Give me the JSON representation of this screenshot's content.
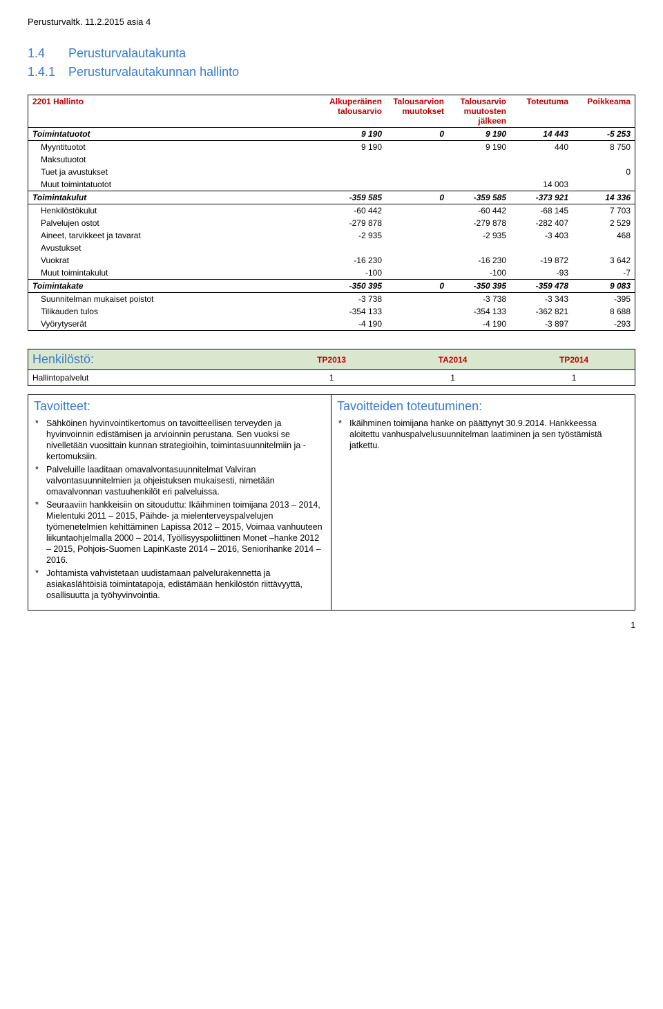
{
  "header": "Perusturvaltk. 11.2.2015 asia 4",
  "section": {
    "num": "1.4",
    "title": "Perusturvalautakunta"
  },
  "subsection": {
    "num": "1.4.1",
    "title": "Perusturvalautakunnan hallinto"
  },
  "financial_table": {
    "title_cell": "2201 Hallinto",
    "columns": [
      "Alkuperäinen talousarvio",
      "Talousarvion muutokset",
      "Talousarvio muutosten jälkeen",
      "Toteutuma",
      "Poikkeama"
    ],
    "title_color": "#c00000",
    "groups": [
      {
        "label": "Toimintatuotot",
        "values": [
          "9 190",
          "0",
          "9 190",
          "14 443",
          "-5 253"
        ],
        "rows": [
          {
            "label": "Myyntituotot",
            "values": [
              "9 190",
              "",
              "9 190",
              "440",
              "8 750"
            ]
          },
          {
            "label": "Maksutuotot",
            "values": [
              "",
              "",
              "",
              "",
              ""
            ]
          },
          {
            "label": "Tuet ja avustukset",
            "values": [
              "",
              "",
              "",
              "",
              "0"
            ]
          },
          {
            "label": "Muut toimintatuotot",
            "values": [
              "",
              "",
              "",
              "14 003",
              ""
            ]
          }
        ]
      },
      {
        "label": "Toimintakulut",
        "values": [
          "-359 585",
          "0",
          "-359 585",
          "-373 921",
          "14 336"
        ],
        "rows": [
          {
            "label": "Henkilöstökulut",
            "values": [
              "-60 442",
              "",
              "-60 442",
              "-68 145",
              "7 703"
            ]
          },
          {
            "label": "Palvelujen ostot",
            "values": [
              "-279 878",
              "",
              "-279 878",
              "-282 407",
              "2 529"
            ]
          },
          {
            "label": "Aineet, tarvikkeet ja tavarat",
            "values": [
              "-2 935",
              "",
              "-2 935",
              "-3 403",
              "468"
            ]
          },
          {
            "label": "Avustukset",
            "values": [
              "",
              "",
              "",
              "",
              ""
            ]
          },
          {
            "label": "Vuokrat",
            "values": [
              "-16 230",
              "",
              "-16 230",
              "-19 872",
              "3 642"
            ]
          },
          {
            "label": "Muut toimintakulut",
            "values": [
              "-100",
              "",
              "-100",
              "-93",
              "-7"
            ]
          }
        ]
      },
      {
        "label": "Toimintakate",
        "values": [
          "-350 395",
          "0",
          "-350 395",
          "-359 478",
          "9 083"
        ],
        "rows": [
          {
            "label": "Suunnitelman mukaiset poistot",
            "values": [
              "-3 738",
              "",
              "-3 738",
              "-3 343",
              "-395"
            ]
          },
          {
            "label": "Tilikauden tulos",
            "values": [
              "-354 133",
              "",
              "-354 133",
              "-362 821",
              "8 688"
            ]
          },
          {
            "label": "Vyörytyserät",
            "values": [
              "-4 190",
              "",
              "-4 190",
              "-3 897",
              "-293"
            ]
          }
        ]
      }
    ]
  },
  "staff_table": {
    "title": "Henkilöstö:",
    "columns": [
      "TP2013",
      "TA2014",
      "TP2014"
    ],
    "header_bg": "#d9e7cf",
    "col_color": "#c00000",
    "rows": [
      {
        "label": "Hallintopalvelut",
        "values": [
          "1",
          "1",
          "1"
        ]
      }
    ]
  },
  "goals": {
    "left_title": "Tavoitteet:",
    "right_title": "Tavoitteiden toteutuminen:",
    "left_items": [
      "Sähköinen hyvinvointikertomus on tavoitteellisen terveyden ja hyvinvoinnin edistämisen ja arvioinnin perustana. Sen vuoksi se nivelletään vuosittain kunnan strategioihin, toimintasuunnitelmiin ja -kertomuksiin.",
      "Palveluille laaditaan omavalvontasuunnitelmat Valviran valvontasuunnitelmien ja ohjeistuksen mukaisesti, nimetään omavalvonnan vastuuhenkilöt eri palveluissa.",
      "Seuraaviin hankkeisiin on sitouduttu: Ikäihminen toimijana 2013 – 2014, Mielentuki 2011 – 2015, Päihde- ja mielenterveyspalvelujen työmenetelmien kehittäminen Lapissa 2012 – 2015, Voimaa vanhuuteen liikuntaohjelmalla 2000 – 2014, Työllisyyspoliittinen Monet –hanke 2012 – 2015, Pohjois-Suomen LapinKaste 2014 – 2016, Seniorihanke 2014 – 2016.",
      "Johtamista vahvistetaan uudistamaan palvelurakennetta ja asiakaslähtöisiä toimintatapoja, edistämään henkilöstön riittävyyttä, osallisuutta ja työhyvinvointia."
    ],
    "right_items": [
      "Ikäihminen toimijana hanke on päättynyt 30.9.2014. Hankkeessa aloitettu vanhuspalvelusuunnitelman laatiminen ja sen työstämistä jatkettu."
    ]
  },
  "page_number": "1"
}
